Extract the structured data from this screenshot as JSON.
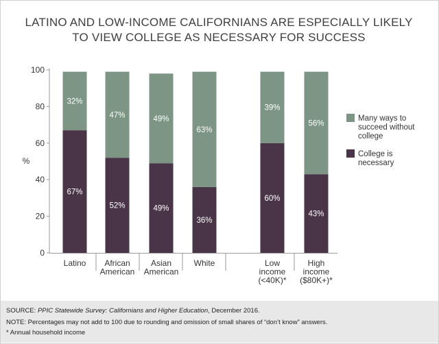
{
  "title_line1": "LATINO AND LOW-INCOME CALIFORNIANS ARE ESPECIALLY LIKELY",
  "title_line2": "TO VIEW COLLEGE AS NECESSARY FOR SUCCESS",
  "chart_data": {
    "type": "bar",
    "stacked": true,
    "title": "LATINO AND LOW-INCOME CALIFORNIANS ARE ESPECIALLY LIKELY TO VIEW COLLEGE AS NECESSARY FOR SUCCESS",
    "ylabel": "%",
    "xlabel": "",
    "ylim": [
      0,
      100
    ],
    "yticks": [
      0,
      20,
      40,
      60,
      80,
      100
    ],
    "grid": false,
    "legend_position": "right",
    "categories": [
      [
        "Latino"
      ],
      [
        "African",
        "American"
      ],
      [
        "Asian",
        "American"
      ],
      [
        "White"
      ],
      [
        "Low",
        "income",
        "(<40K)*"
      ],
      [
        "High",
        "income",
        "($80K+)*"
      ]
    ],
    "series": [
      {
        "name": "College is necessary",
        "color": "#4a3548",
        "values": [
          67,
          52,
          49,
          36,
          60,
          43
        ],
        "labels": [
          "67%",
          "52%",
          "49%",
          "36%",
          "60%",
          "43%"
        ]
      },
      {
        "name": "Many ways to succeed without college",
        "color": "#7c9584",
        "values": [
          32,
          47,
          49,
          63,
          39,
          56
        ],
        "labels": [
          "32%",
          "47%",
          "49%",
          "63%",
          "39%",
          "56%"
        ]
      }
    ],
    "legend": [
      {
        "lines": [
          "Many ways to",
          "succeed without",
          "college"
        ],
        "color": "#7c9584"
      },
      {
        "lines": [
          "College is",
          "necessary"
        ],
        "color": "#4a3548"
      }
    ]
  },
  "footer": {
    "source_prefix": "SOURCE: ",
    "source_italic": "PPIC Statewide Survey: Californians and Higher Education",
    "source_suffix": ", December 2016.",
    "note": "NOTE: Percentages may not add to 100 due to rounding and omission of small shares of “don’t know” answers.",
    "footnote": "* Annual household income"
  }
}
